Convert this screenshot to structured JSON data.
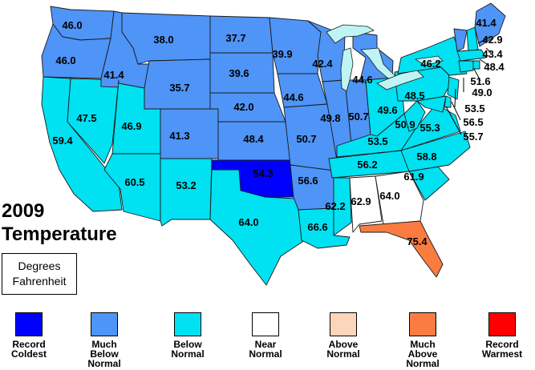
{
  "title_line1": "2009",
  "title_line2": "Temperature",
  "units_line1": "Degrees",
  "units_line2": "Fahrenheit",
  "legend": [
    {
      "label": "Record\nColdest",
      "color": "#0000ff"
    },
    {
      "label": "Much\nBelow\nNormal",
      "color": "#4f94f7"
    },
    {
      "label": "Below\nNormal",
      "color": "#00e1f2"
    },
    {
      "label": "Near\nNormal",
      "color": "#ffffff"
    },
    {
      "label": "Above\nNormal",
      "color": "#fdd5bb"
    },
    {
      "label": "Much\nAbove\nNormal",
      "color": "#fb7c41"
    },
    {
      "label": "Record\nWarmest",
      "color": "#ff0000"
    }
  ],
  "categories": {
    "record_coldest": "#0000ff",
    "much_below": "#4f94f7",
    "below": "#00e1f2",
    "near": "#ffffff",
    "above": "#fdd5bb",
    "much_above": "#fb7c41",
    "record_warmest": "#ff0000"
  },
  "states": [
    {
      "name": "WA",
      "value": "46.0",
      "category": "much_below"
    },
    {
      "name": "OR",
      "value": "46.0",
      "category": "much_below"
    },
    {
      "name": "CA",
      "value": "59.4",
      "category": "below"
    },
    {
      "name": "NV",
      "value": "47.5",
      "category": "below"
    },
    {
      "name": "ID",
      "value": "41.4",
      "category": "much_below"
    },
    {
      "name": "MT",
      "value": "38.0",
      "category": "much_below"
    },
    {
      "name": "WY",
      "value": "35.7",
      "category": "much_below"
    },
    {
      "name": "UT",
      "value": "46.9",
      "category": "below"
    },
    {
      "name": "AZ",
      "value": "60.5",
      "category": "below"
    },
    {
      "name": "CO",
      "value": "41.3",
      "category": "much_below"
    },
    {
      "name": "NM",
      "value": "53.2",
      "category": "below"
    },
    {
      "name": "ND",
      "value": "37.7",
      "category": "much_below"
    },
    {
      "name": "SD",
      "value": "39.6",
      "category": "much_below"
    },
    {
      "name": "NE",
      "value": "42.0",
      "category": "much_below"
    },
    {
      "name": "KS",
      "value": "48.4",
      "category": "much_below"
    },
    {
      "name": "OK",
      "value": "54.3",
      "category": "record_coldest"
    },
    {
      "name": "TX",
      "value": "64.0",
      "category": "below"
    },
    {
      "name": "MN",
      "value": "39.9",
      "category": "much_below"
    },
    {
      "name": "IA",
      "value": "44.6",
      "category": "much_below"
    },
    {
      "name": "MO",
      "value": "50.7",
      "category": "much_below"
    },
    {
      "name": "AR",
      "value": "56.6",
      "category": "much_below"
    },
    {
      "name": "LA",
      "value": "66.6",
      "category": "below"
    },
    {
      "name": "WI",
      "value": "42.4",
      "category": "much_below"
    },
    {
      "name": "IL",
      "value": "49.8",
      "category": "much_below"
    },
    {
      "name": "MI",
      "value": "44.6",
      "category": "much_below"
    },
    {
      "name": "IN",
      "value": "50.7",
      "category": "much_below"
    },
    {
      "name": "OH",
      "value": "49.6",
      "category": "below"
    },
    {
      "name": "KY",
      "value": "53.5",
      "category": "below"
    },
    {
      "name": "TN",
      "value": "56.2",
      "category": "below"
    },
    {
      "name": "MS",
      "value": "62.2",
      "category": "below"
    },
    {
      "name": "AL",
      "value": "62.9",
      "category": "near"
    },
    {
      "name": "GA",
      "value": "64.0",
      "category": "near"
    },
    {
      "name": "FL",
      "value": "75.4",
      "category": "much_above"
    },
    {
      "name": "SC",
      "value": "61.9",
      "category": "below"
    },
    {
      "name": "NC",
      "value": "58.8",
      "category": "below"
    },
    {
      "name": "VA",
      "value": "55.3",
      "category": "below"
    },
    {
      "name": "WV",
      "value": "50.9",
      "category": "below"
    },
    {
      "name": "PA",
      "value": "48.5",
      "category": "below"
    },
    {
      "name": "NY",
      "value": "46.2",
      "category": "below"
    },
    {
      "name": "VT",
      "value": "42.9",
      "category": "much_below"
    },
    {
      "name": "NH",
      "value": "43.4",
      "category": "below"
    },
    {
      "name": "ME",
      "value": "41.4",
      "category": "much_below"
    },
    {
      "name": "MA",
      "value": "48.4",
      "category": "below"
    },
    {
      "name": "CT",
      "value": "49.0",
      "category": "below"
    },
    {
      "name": "RI",
      "value": "51.6",
      "category": "below"
    },
    {
      "name": "NJ",
      "value": "53.5",
      "category": "below"
    },
    {
      "name": "DE",
      "value": "56.5",
      "category": "below"
    },
    {
      "name": "MD",
      "value": "55.7",
      "category": "below"
    }
  ]
}
